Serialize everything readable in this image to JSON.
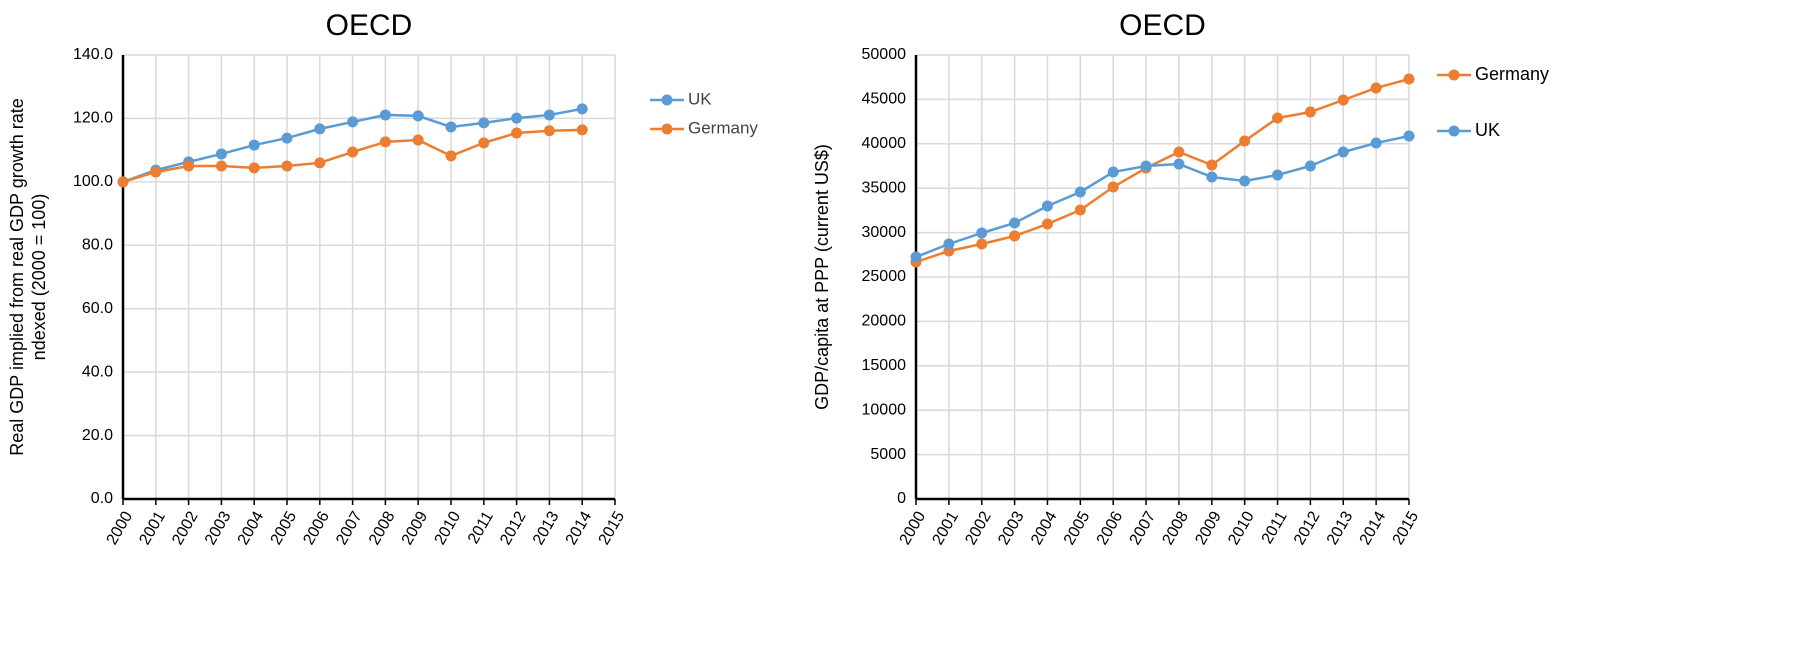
{
  "chart_data": [
    {
      "type": "line",
      "title": "OECD",
      "ylabel": [
        "Real GDP implied from real GDP growth rate",
        "ndexed (2000 = 100)"
      ],
      "categories": [
        "2000",
        "2001",
        "2002",
        "2003",
        "2004",
        "2005",
        "2006",
        "2007",
        "2008",
        "2009",
        "2010",
        "2011",
        "2012",
        "2013",
        "2014",
        "2015"
      ],
      "series": [
        {
          "name": "UK",
          "color": "#5b9bd5",
          "values": [
            100,
            103.7,
            106.3,
            108.8,
            111.6,
            113.8,
            116.7,
            118.9,
            121.1,
            120.8,
            117.3,
            118.6,
            120.1,
            121.1,
            123.0,
            null
          ]
        },
        {
          "name": "Germany",
          "color": "#ed7d31",
          "values": [
            100,
            103.1,
            105.0,
            105.0,
            104.4,
            105.0,
            106.0,
            109.4,
            112.6,
            113.2,
            108.2,
            112.3,
            115.4,
            116.1,
            116.4,
            null
          ]
        }
      ],
      "ylim": [
        0,
        140
      ],
      "yticks": [
        {
          "value": 0,
          "label": "0.0"
        },
        {
          "value": 20,
          "label": "20.0"
        },
        {
          "value": 40,
          "label": "40.0"
        },
        {
          "value": 60,
          "label": "60.0"
        },
        {
          "value": 80,
          "label": "80.0"
        },
        {
          "value": 100,
          "label": "100.0"
        },
        {
          "value": 120,
          "label": "120.0"
        },
        {
          "value": 140,
          "label": "140.0"
        }
      ],
      "grid": true,
      "legend": "right"
    },
    {
      "type": "line",
      "title": "OECD",
      "ylabel": [
        "GDP/capita at PPP (current US$)"
      ],
      "categories": [
        "2000",
        "2001",
        "2002",
        "2003",
        "2004",
        "2005",
        "2006",
        "2007",
        "2008",
        "2009",
        "2010",
        "2011",
        "2012",
        "2013",
        "2014",
        "2015"
      ],
      "series": [
        {
          "name": "Germany",
          "color": "#ed7d31",
          "values": [
            26689,
            27928,
            28716,
            29617,
            30968,
            32545,
            35135,
            37275,
            39077,
            37613,
            40315,
            42905,
            43581,
            44932,
            46284,
            47297
          ]
        },
        {
          "name": "UK",
          "color": "#5b9bd5",
          "values": [
            27252,
            28716,
            29955,
            31081,
            32995,
            34572,
            36824,
            37500,
            37725,
            36261,
            35811,
            36486,
            37500,
            39077,
            40090,
            40878
          ]
        }
      ],
      "ylim": [
        0,
        50000
      ],
      "yticks": [
        0,
        5000,
        10000,
        15000,
        20000,
        25000,
        30000,
        35000,
        40000,
        45000,
        50000
      ],
      "grid": true,
      "legend": "right"
    }
  ]
}
